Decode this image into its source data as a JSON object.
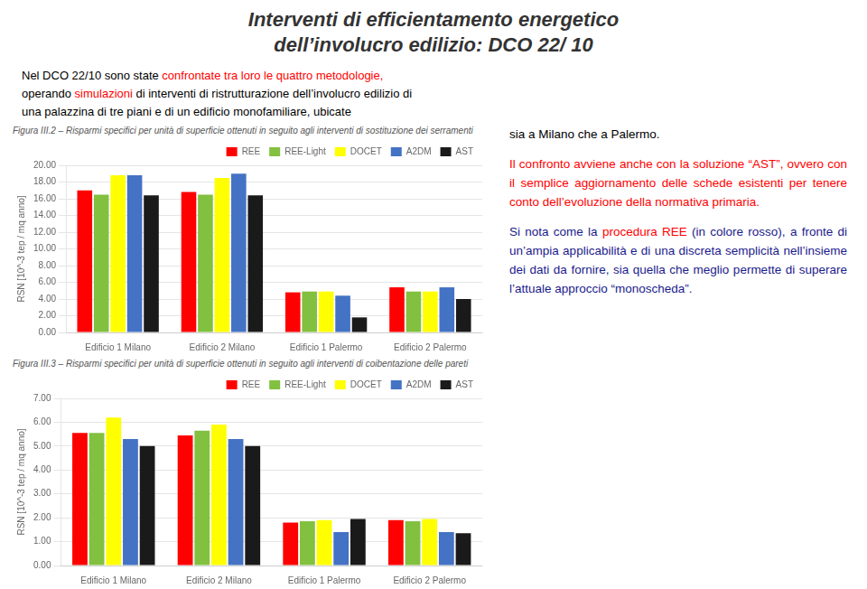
{
  "title": "Interventi di efficientamento energetico\ndell’involucro edilizio: DCO 22/ 10",
  "subtitle": [
    [
      {
        "text": "Nel DCO 22/10 sono state ",
        "color": "black"
      },
      {
        "text": "confrontate tra loro le quattro metodologie,",
        "color": "red"
      }
    ],
    [
      {
        "text": "operando ",
        "color": "black"
      },
      {
        "text": "simulazioni ",
        "color": "red"
      },
      {
        "text": "di interventi di ristrutturazione dell’involucro edilizio di",
        "color": "black"
      }
    ],
    [
      {
        "text": "una palazzina di tre piani e di un edificio monofamiliare, ubicate",
        "color": "black"
      }
    ]
  ],
  "annotations": [
    [
      {
        "text": "sia a Milano che a Palermo.",
        "color": "black"
      }
    ],
    [
      {
        "text": "Il confronto avviene anche con la soluzione “AST”, ovvero con il semplice aggiornamento delle schede esistenti per tenere conto dell’evoluzione della normativa primaria.",
        "color": "red"
      }
    ],
    [
      {
        "text": "Si nota come la ",
        "color": "#1A1A8C"
      },
      {
        "text": "procedura REE ",
        "color": "red"
      },
      {
        "text": "(in colore rosso), a fronte di un’ampia applicabilità e di una discreta semplicità nell’insieme dei dati da fornire, sia quella che meglio permette di superare l’attuale approccio “monoscheda”.",
        "color": "#1A1A8C"
      }
    ]
  ],
  "chart_data": [
    {
      "type": "bar",
      "title": "Figura III.2 – Risparmi specifici per unità di superficie ottenuti in seguito agli interventi di sostituzione dei serramenti",
      "categories": [
        "Edificio 1 Milano",
        "Edificio 2 Milano",
        "Edificio 1 Palermo",
        "Edificio 2 Palermo"
      ],
      "series": [
        {
          "name": "REE",
          "color": "#FF0000",
          "values": [
            17.0,
            16.8,
            4.8,
            5.4
          ]
        },
        {
          "name": "REE-Light",
          "color": "#82C040",
          "values": [
            16.5,
            16.5,
            4.9,
            4.9
          ]
        },
        {
          "name": "DOCET",
          "color": "#FFFF00",
          "values": [
            18.8,
            18.5,
            4.9,
            4.9
          ]
        },
        {
          "name": "A2DM",
          "color": "#4472C4",
          "values": [
            18.8,
            19.0,
            4.4,
            5.4
          ]
        },
        {
          "name": "AST",
          "color": "#1A1A1A",
          "values": [
            16.4,
            16.4,
            1.8,
            4.0
          ]
        }
      ],
      "ylabel": "RSN [10^-3 tep / mq anno]",
      "ylim": [
        0,
        20
      ],
      "yticks": [
        {
          "value": 0,
          "label": "0.00"
        },
        {
          "value": 2,
          "label": "2.00"
        },
        {
          "value": 4,
          "label": "4.00"
        },
        {
          "value": 6,
          "label": "6.00"
        },
        {
          "value": 8,
          "label": "8.00"
        },
        {
          "value": 10,
          "label": "10.00"
        },
        {
          "value": 12,
          "label": "12.00"
        },
        {
          "value": 14,
          "label": "14.00"
        },
        {
          "value": 16,
          "label": "16.00"
        },
        {
          "value": 18,
          "label": "18.00"
        },
        {
          "value": 20,
          "label": "20.00"
        }
      ],
      "grid": true,
      "legend": "upper right"
    },
    {
      "type": "bar",
      "title": "Figura III.3 – Risparmi specifici per unità di superficie ottenuti in seguito agli interventi di coibentazione delle pareti",
      "categories": [
        "Edificio 1 Milano",
        "Edificio 2 Milano",
        "Edificio 1 Palermo",
        "Edificio 2 Palermo"
      ],
      "series": [
        {
          "name": "REE",
          "color": "#FF0000",
          "values": [
            5.55,
            5.45,
            1.8,
            1.9
          ]
        },
        {
          "name": "REE-Light",
          "color": "#82C040",
          "values": [
            5.55,
            5.65,
            1.85,
            1.85
          ]
        },
        {
          "name": "DOCET",
          "color": "#FFFF00",
          "values": [
            6.2,
            5.9,
            1.9,
            1.95
          ]
        },
        {
          "name": "A2DM",
          "color": "#4472C4",
          "values": [
            5.3,
            5.3,
            1.4,
            1.4
          ]
        },
        {
          "name": "AST",
          "color": "#1A1A1A",
          "values": [
            5.0,
            5.0,
            1.95,
            1.35
          ]
        }
      ],
      "ylabel": "RSN [10^-3 tep / mq anno]",
      "ylim": [
        0,
        7
      ],
      "yticks": [
        {
          "value": 0,
          "label": "0.00"
        },
        {
          "value": 1,
          "label": "1.00"
        },
        {
          "value": 2,
          "label": "2.00"
        },
        {
          "value": 3,
          "label": "3.00"
        },
        {
          "value": 4,
          "label": "4.00"
        },
        {
          "value": 5,
          "label": "5.00"
        },
        {
          "value": 6,
          "label": "6.00"
        },
        {
          "value": 7,
          "label": "7.00"
        }
      ],
      "grid": true,
      "legend": "upper right"
    }
  ]
}
